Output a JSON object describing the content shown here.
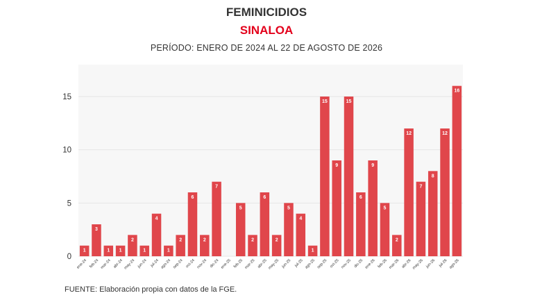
{
  "header": {
    "title": "FEMINICIDIOS",
    "subtitle": "SINALOA",
    "period": "PERÍODO: ENERO DE 2024 AL 22 DE AGOSTO DE 2026"
  },
  "footer": {
    "source": "FUENTE: Elaboración propia con datos de la FGE."
  },
  "colors": {
    "bar": "#e0464b",
    "subtitle": "#e3001b",
    "plot_bg": "#f7f7f7",
    "grid": "#e6e6e6"
  },
  "chart_data": {
    "type": "bar",
    "title": "FEMINICIDIOS",
    "xlabel": "",
    "ylabel": "",
    "ylim": [
      0,
      18
    ],
    "yticks": [
      0,
      5,
      10,
      15
    ],
    "grid": true,
    "categories": [
      "ene-24",
      "feb-24",
      "mar-24",
      "abr-24",
      "may-24",
      "jun-24",
      "jul-24",
      "ago-24",
      "sep-24",
      "oct-24",
      "nov-24",
      "dic-24",
      "ene-25",
      "feb-25",
      "mar-25",
      "abr-25",
      "may-25",
      "jun-25",
      "jul-25",
      "ago-25",
      "sep-25",
      "oct-25",
      "nov-25",
      "dic-25",
      "ene-26",
      "feb-26",
      "mar-26",
      "abr-26",
      "may-26",
      "jun-26",
      "jul-26",
      "ago-26"
    ],
    "values": [
      1,
      3,
      1,
      1,
      2,
      1,
      4,
      1,
      2,
      6,
      2,
      7,
      0,
      5,
      2,
      6,
      2,
      5,
      4,
      1,
      15,
      9,
      15,
      6,
      9,
      5,
      2,
      12,
      7,
      8,
      12,
      16
    ]
  }
}
